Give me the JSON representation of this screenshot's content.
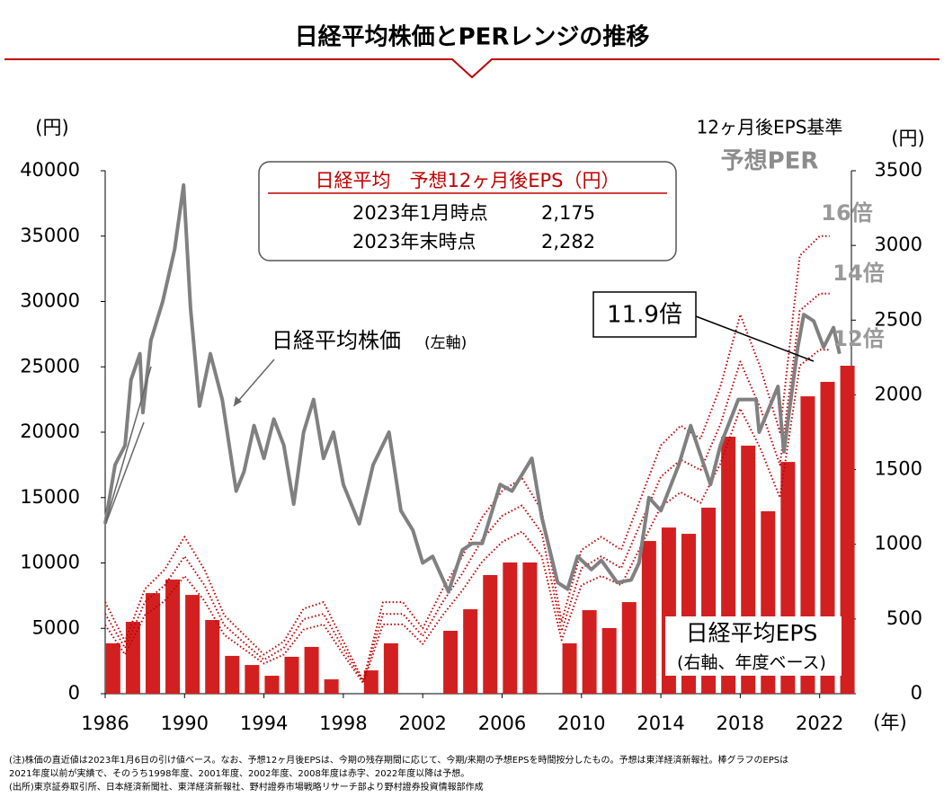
{
  "chart_data": {
    "type": "combo",
    "title": "日経平均株価とPERレンジの推移",
    "y_label": "(円)",
    "y2_label": "(円)",
    "x_label": "(年)",
    "per_title": "12ヶ月後EPS基準",
    "per_subtitle": "予想PER",
    "xlim": [
      1986,
      2023.6
    ],
    "xticks": [
      1986,
      1990,
      1994,
      1998,
      2002,
      2006,
      2010,
      2014,
      2018,
      2022
    ],
    "ylim": [
      0,
      40000
    ],
    "yticks": [
      0,
      5000,
      10000,
      15000,
      20000,
      25000,
      30000,
      35000,
      40000
    ],
    "y2lim": [
      0,
      3500
    ],
    "y2ticks": [
      0,
      500,
      1000,
      1500,
      2000,
      2500,
      3000,
      3500
    ],
    "series": [
      {
        "name": "日経平均EPS",
        "kind": "bar",
        "axis": "y2",
        "color": "#d22020",
        "x": [
          1986,
          1987,
          1988,
          1989,
          1990,
          1991,
          1992,
          1993,
          1994,
          1995,
          1996,
          1997,
          1998,
          1999,
          2000,
          2001,
          2002,
          2003,
          2004,
          2005,
          2006,
          2007,
          2008,
          2009,
          2010,
          2011,
          2012,
          2013,
          2014,
          2015,
          2016,
          2017,
          2018,
          2019,
          2020,
          2021,
          2022,
          2023
        ],
        "values": [
          337,
          481,
          673,
          764,
          661,
          493,
          253,
          192,
          120,
          247,
          313,
          96,
          null,
          156,
          337,
          null,
          null,
          421,
          565,
          794,
          878,
          878,
          null,
          337,
          559,
          439,
          613,
          1022,
          1112,
          1070,
          1245,
          1720,
          1660,
          1221,
          1551,
          1990,
          2087,
          2195
        ]
      },
      {
        "name": "16倍",
        "kind": "line",
        "dashed": true,
        "color": "#c00000",
        "x": [
          1986,
          1987,
          1988,
          1989,
          1990,
          1991,
          1992,
          1993,
          1994,
          1995,
          1996,
          1997,
          1998,
          1999,
          2000,
          2001,
          2002,
          2003,
          2004,
          2005,
          2006,
          2007,
          2008,
          2009,
          2010,
          2011,
          2012,
          2013,
          2014,
          2015,
          2016,
          2017,
          2018,
          2019,
          2020,
          2021,
          2022,
          2022.5
        ],
        "values": [
          7000,
          4000,
          8000,
          9500,
          12000,
          9500,
          6000,
          4500,
          3000,
          4000,
          6500,
          7000,
          4000,
          1000,
          7000,
          7000,
          5000,
          8000,
          10500,
          13500,
          15500,
          16500,
          14000,
          5500,
          11000,
          12000,
          11000,
          15000,
          19000,
          20500,
          19500,
          23500,
          29000,
          25000,
          20000,
          33500,
          35000,
          35000
        ]
      },
      {
        "name": "14倍",
        "kind": "line",
        "dashed": true,
        "color": "#c00000",
        "x": [
          1986,
          1987,
          1988,
          1989,
          1990,
          1991,
          1992,
          1993,
          1994,
          1995,
          1996,
          1997,
          1998,
          1999,
          2000,
          2001,
          2002,
          2003,
          2004,
          2005,
          2006,
          2007,
          2008,
          2009,
          2010,
          2011,
          2012,
          2013,
          2014,
          2015,
          2016,
          2017,
          2018,
          2019,
          2020,
          2021,
          2022,
          2022.5
        ],
        "values": [
          6100,
          3500,
          7000,
          8300,
          10500,
          8300,
          5250,
          3900,
          2600,
          3500,
          5700,
          6100,
          3500,
          900,
          6100,
          6100,
          4400,
          7000,
          9200,
          11800,
          13600,
          14400,
          12300,
          4800,
          9600,
          10500,
          9600,
          13100,
          16600,
          17900,
          17100,
          20600,
          25400,
          21900,
          17500,
          29300,
          30600,
          30600
        ]
      },
      {
        "name": "12倍",
        "kind": "line",
        "dashed": true,
        "color": "#c00000",
        "x": [
          1986,
          1987,
          1988,
          1989,
          1990,
          1991,
          1992,
          1993,
          1994,
          1995,
          1996,
          1997,
          1998,
          1999,
          2000,
          2001,
          2002,
          2003,
          2004,
          2005,
          2006,
          2007,
          2008,
          2009,
          2010,
          2011,
          2012,
          2013,
          2014,
          2015,
          2016,
          2017,
          2018,
          2019,
          2020,
          2021,
          2022,
          2022.5
        ],
        "values": [
          5250,
          3000,
          6000,
          7100,
          9000,
          7100,
          4500,
          3400,
          2300,
          3000,
          4900,
          5300,
          3000,
          800,
          5300,
          5300,
          3800,
          6000,
          7900,
          10100,
          11600,
          12400,
          10500,
          4100,
          8300,
          9000,
          8300,
          11300,
          14300,
          15400,
          14600,
          17600,
          21800,
          18800,
          15000,
          25100,
          26300,
          26300
        ]
      },
      {
        "name": "日経平均株価",
        "kind": "line",
        "dashed": false,
        "color": "#808080",
        "x": [
          1986.0,
          1986.5,
          1987.0,
          1987.3,
          1987.75,
          1987.9,
          1988.3,
          1988.9,
          1989.5,
          1989.95,
          1990.3,
          1990.75,
          1991.3,
          1991.9,
          1992.6,
          1993.0,
          1993.5,
          1994.0,
          1994.5,
          1995.0,
          1995.5,
          1996.0,
          1996.5,
          1997.0,
          1997.5,
          1998.0,
          1998.8,
          1999.5,
          2000.3,
          2000.9,
          2001.5,
          2002.0,
          2002.5,
          2003.3,
          2004.0,
          2004.5,
          2005.0,
          2005.9,
          2006.5,
          2007.5,
          2008.0,
          2008.8,
          2009.3,
          2009.8,
          2010.5,
          2011.0,
          2011.8,
          2012.5,
          2012.9,
          2013.4,
          2014.0,
          2014.9,
          2015.5,
          2016.5,
          2017.0,
          2017.9,
          2018.8,
          2018.95,
          2019.9,
          2020.2,
          2020.9,
          2021.2,
          2021.7,
          2022.2,
          2022.7,
          2023.0
        ],
        "values": [
          13000,
          17500,
          19000,
          24000,
          26000,
          21500,
          27000,
          30000,
          34000,
          38900,
          29500,
          22000,
          26000,
          22500,
          15500,
          17000,
          20500,
          18000,
          21000,
          19000,
          14500,
          20000,
          22500,
          18000,
          20000,
          16000,
          13000,
          17500,
          20000,
          14000,
          12500,
          10000,
          10500,
          7800,
          11000,
          11500,
          11500,
          16000,
          15500,
          18000,
          13500,
          8500,
          8000,
          10500,
          9500,
          10200,
          8500,
          8700,
          10000,
          15000,
          14000,
          17500,
          20500,
          16000,
          19000,
          22500,
          22500,
          20000,
          23500,
          18500,
          26500,
          29000,
          28500,
          26500,
          28000,
          26000
        ]
      }
    ],
    "annotations": [
      "(左軸)",
      "(右軸、年度ベース)",
      "11.9倍"
    ],
    "info_box": {
      "title": "日経平均　予想12ヶ月後EPS（円）",
      "rows": [
        [
          "2023年1月時点",
          "2,175"
        ],
        [
          "2023年末時点",
          "2,282"
        ]
      ]
    },
    "notes": [
      "(注)株価の直近値は2023年1月6日の引け値ベース。なお、予想12ヶ月後EPSは、今期の残存期間に応じて、今期/来期の予想EPSを時間按分したもの。予想は東洋経済新報社。棒グラフのEPSは",
      "2021年度以前が実績で、そのうち1998年度、2001年度、2002年度、2008年度は赤字、2022年度以降は予想。",
      "(出所)東京証券取引所、日本経済新聞社、東洋経済新報社、野村證券市場戦略リサーチ部より野村證券投資情報部作成"
    ]
  }
}
